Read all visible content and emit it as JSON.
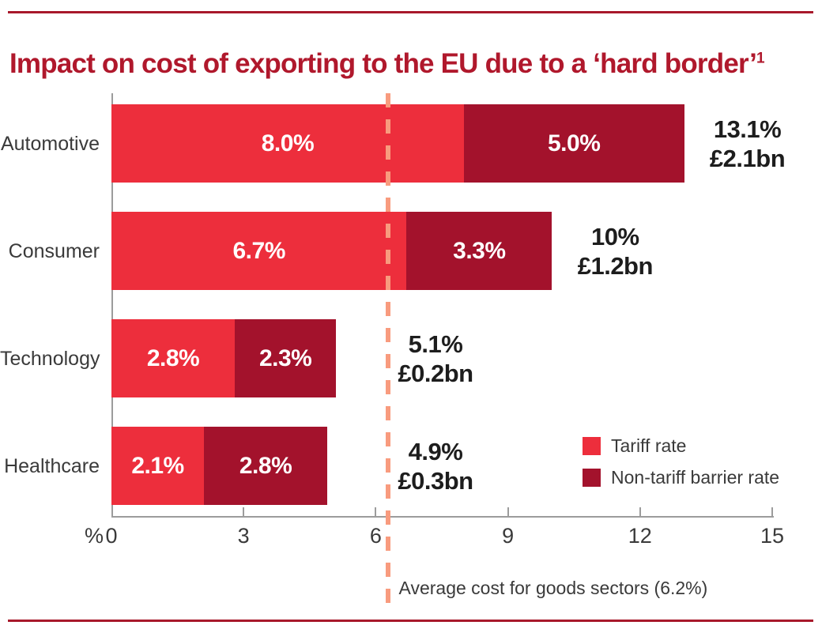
{
  "title": {
    "text": "Impact on cost of exporting to the EU due to a ‘hard border’",
    "superscript": "1"
  },
  "colors": {
    "title": "#B0182C",
    "rule": "#A8192B",
    "tariff": "#ED2E3C",
    "non_tariff": "#A3122C",
    "dashed_line": "#F89B7E",
    "axis": "#9C9C9C",
    "text": "#3a3a3a",
    "bar_label": "#ffffff",
    "total_label": "#1d1d1d"
  },
  "chart_data": {
    "type": "bar",
    "orientation": "horizontal",
    "stacked": true,
    "title": "Impact on cost of exporting to the EU due to a ‘hard border’",
    "categories": [
      "Automotive",
      "Consumer",
      "Technology",
      "Healthcare"
    ],
    "series": [
      {
        "name": "Tariff rate",
        "color": "#ED2E3C",
        "values": [
          8.0,
          6.7,
          2.8,
          2.1
        ],
        "labels": [
          "8.0%",
          "6.7%",
          "2.8%",
          "2.1%"
        ]
      },
      {
        "name": "Non-tariff barrier rate",
        "color": "#A3122C",
        "values": [
          5.0,
          3.3,
          2.3,
          2.8
        ],
        "labels": [
          "5.0%",
          "3.3%",
          "2.3%",
          "2.8%"
        ]
      }
    ],
    "totals": [
      {
        "percent": "13.1%",
        "value": "£2.1bn"
      },
      {
        "percent": "10%",
        "value": "£1.2bn"
      },
      {
        "percent": "5.1%",
        "value": "£0.2bn"
      },
      {
        "percent": "4.9%",
        "value": "£0.3bn"
      }
    ],
    "x_axis": {
      "unit": "%",
      "ticks": [
        "0",
        "3",
        "6",
        "9",
        "12",
        "15"
      ],
      "min": 0,
      "max": 15,
      "grid": false
    },
    "reference_line": {
      "value": 6.2,
      "label": "Average cost for goods sectors (6.2%)"
    },
    "legend": {
      "position": "bottom-right",
      "entries": [
        "Tariff rate",
        "Non-tariff barrier rate"
      ]
    }
  }
}
